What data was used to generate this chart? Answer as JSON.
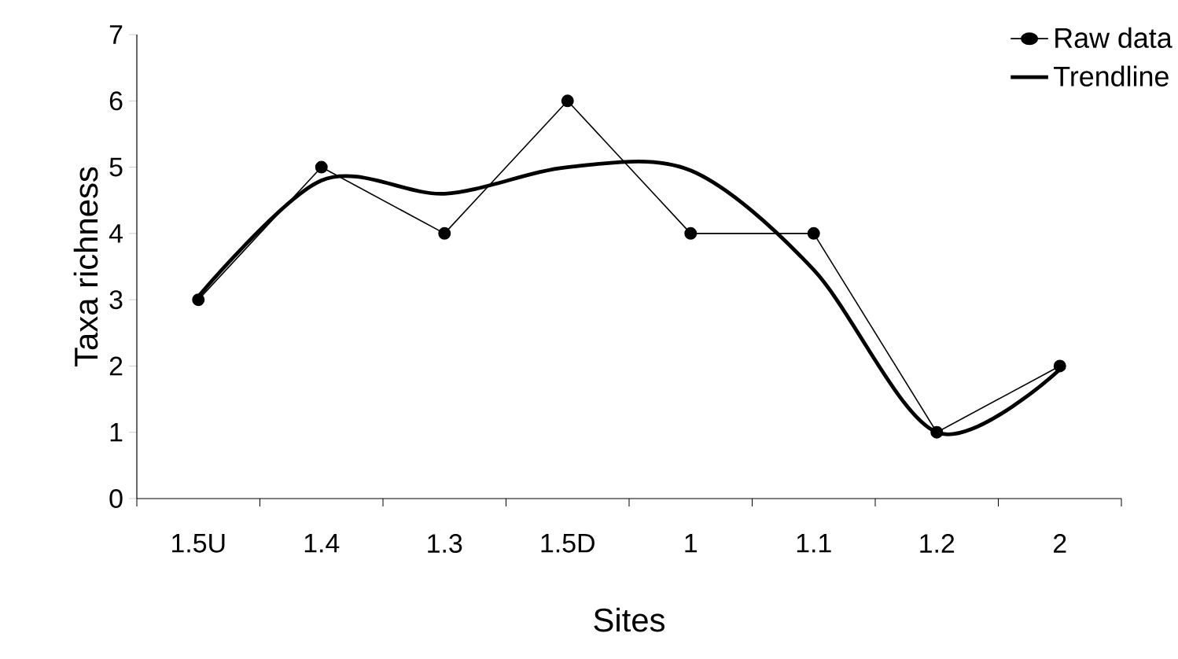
{
  "chart_data": {
    "type": "line",
    "xlabel": "Sites",
    "ylabel": "Taxa richness",
    "categories": [
      "1.5U",
      "1.4",
      "1.3",
      "1.5D",
      "1",
      "1.1",
      "1.2",
      "2"
    ],
    "ylim": [
      0,
      7
    ],
    "yticks": [
      0,
      1,
      2,
      3,
      4,
      5,
      6,
      7
    ],
    "grid": false,
    "legend": "top right",
    "series": [
      {
        "name": "Raw data",
        "color": "#000000",
        "marker": "circle",
        "values": [
          3,
          5,
          4,
          6,
          4,
          4,
          1,
          2
        ]
      },
      {
        "name": "Trendline",
        "color": "#000000",
        "marker": "none",
        "values": [
          3.05,
          4.8,
          4.6,
          5.0,
          4.95,
          3.45,
          1.0,
          1.95
        ]
      }
    ]
  }
}
